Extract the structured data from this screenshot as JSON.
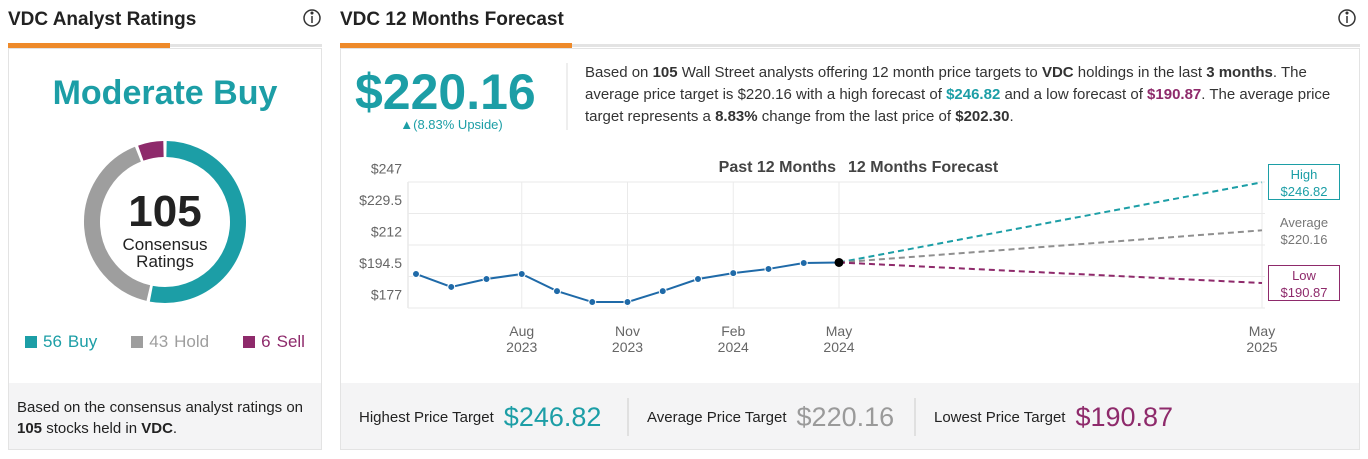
{
  "ratings_panel": {
    "title": "VDC Analyst Ratings",
    "consensus": "Moderate Buy",
    "footer": [
      "Based on the consensus analyst ratings on ",
      "105",
      " stocks held in ",
      "VDC",
      "."
    ]
  },
  "forecast_panel": {
    "title": "VDC 12 Months Forecast",
    "price": "$220.16",
    "upside": "▲(8.83% Upside)",
    "description": [
      "Based on ",
      "105",
      " Wall Street analysts offering 12 month price targets to ",
      "VDC",
      " holdings in the last ",
      "3 months",
      ". The average price target is ",
      "$220.16",
      " with a high forecast of ",
      "$246.82",
      " and a low forecast of ",
      "$190.87",
      ". The average price target represents a ",
      "8.83%",
      " change from the last price of ",
      "$202.30",
      "."
    ],
    "summary": [
      {
        "label": "Highest Price Target",
        "value": "$246.82"
      },
      {
        "label": "Average Price Target",
        "value": "$220.16"
      },
      {
        "label": "Lowest Price Target",
        "value": "$190.87"
      }
    ]
  },
  "chart_data": [
    {
      "type": "donut",
      "total": 105,
      "center_label": "Consensus Ratings",
      "categories": [
        "Buy",
        "Hold",
        "Sell"
      ],
      "values": [
        56,
        43,
        6
      ],
      "colors": [
        "#1c9ea6",
        "#9e9e9e",
        "#8e2a6b"
      ]
    },
    {
      "type": "line",
      "annotations": [
        "Past 12 Months",
        "12 Months Forecast"
      ],
      "x": [
        "2023-05",
        "2023-06",
        "2023-07",
        "2023-08",
        "2023-09",
        "2023-10",
        "2023-11",
        "2023-12",
        "2024-01",
        "2024-02",
        "2024-03",
        "2024-04",
        "2024-05"
      ],
      "values": [
        195.9,
        188.7,
        193.1,
        195.9,
        186.4,
        180.3,
        180.3,
        186.4,
        193.1,
        196.4,
        198.7,
        202,
        202.3
      ],
      "color": "#1f6aa8",
      "forecasts": [
        {
          "name": "High",
          "color": "#1c9ea6",
          "x": [
            "2024-05",
            "2025-05"
          ],
          "values": [
            202.3,
            246.82
          ],
          "label": "$246.82"
        },
        {
          "name": "Average",
          "color": "#8f8f8f",
          "x": [
            "2024-05",
            "2025-05"
          ],
          "values": [
            202.3,
            220.16
          ],
          "label": "$220.16"
        },
        {
          "name": "Low",
          "color": "#8e2a6b",
          "x": [
            "2024-05",
            "2025-05"
          ],
          "values": [
            202.3,
            190.87
          ],
          "label": "$190.87"
        }
      ],
      "xlim": [
        "2023-05",
        "2025-05"
      ],
      "xticks": [
        {
          "value": "2023-08",
          "label": "Aug 2023"
        },
        {
          "value": "2023-11",
          "label": "Nov 2023"
        },
        {
          "value": "2024-02",
          "label": "Feb 2024"
        },
        {
          "value": "2024-05",
          "label": "May 2024"
        },
        {
          "value": "2025-05",
          "label": "May 2025"
        }
      ],
      "ylim": [
        177,
        247
      ],
      "yticks": [
        {
          "value": 247,
          "label": "$247"
        },
        {
          "value": 229.5,
          "label": "$229.5"
        },
        {
          "value": 212,
          "label": "$212"
        },
        {
          "value": 194.5,
          "label": "$194.5"
        },
        {
          "value": 177,
          "label": "$177"
        }
      ],
      "grid": true
    }
  ]
}
